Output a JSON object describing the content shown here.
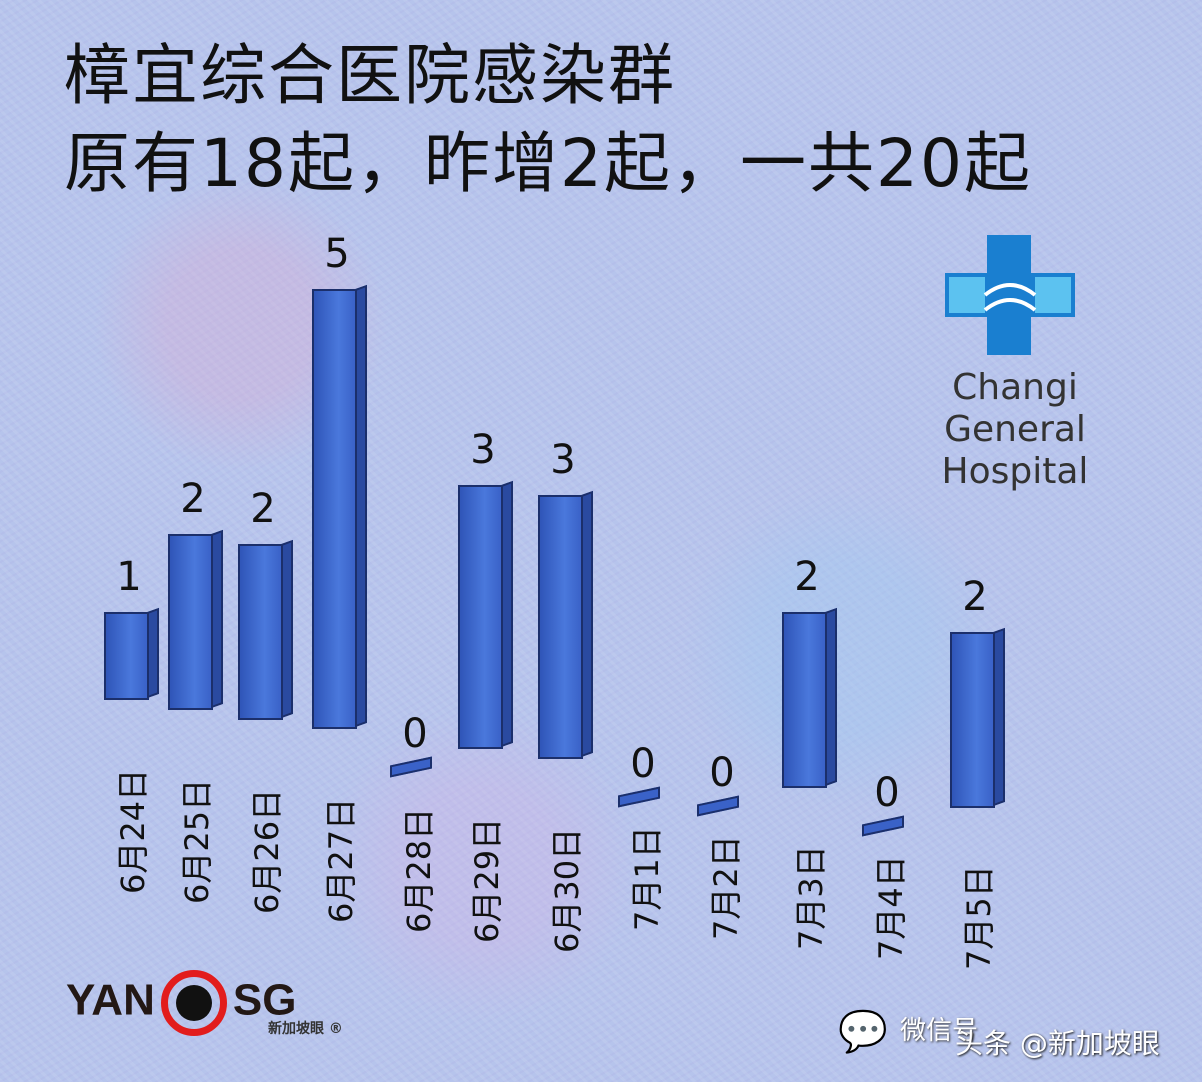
{
  "chart_data": {
    "type": "bar",
    "title": "樟宜综合医院感染群",
    "subtitle": "原有18起，昨增2起，一共20起",
    "categories": [
      "6月24日",
      "6月25日",
      "6月26日",
      "6月27日",
      "6月28日",
      "6月29日",
      "6月30日",
      "7月1日",
      "7月2日",
      "7月3日",
      "7月4日",
      "7月5日"
    ],
    "values": [
      1,
      2,
      2,
      5,
      0,
      3,
      3,
      0,
      0,
      2,
      0,
      2
    ],
    "bar_color": "#3a62c8",
    "xlabel": "",
    "ylabel": "",
    "grid": false
  },
  "logo": {
    "line1": "Changi",
    "line2": "General Hospital"
  },
  "brand": {
    "name_left": "YAN",
    "name_right": "SG",
    "sub": "新加坡眼 ®"
  },
  "watermark": {
    "wechat": "微信号",
    "toutiao": "头条 @新加坡眼"
  }
}
